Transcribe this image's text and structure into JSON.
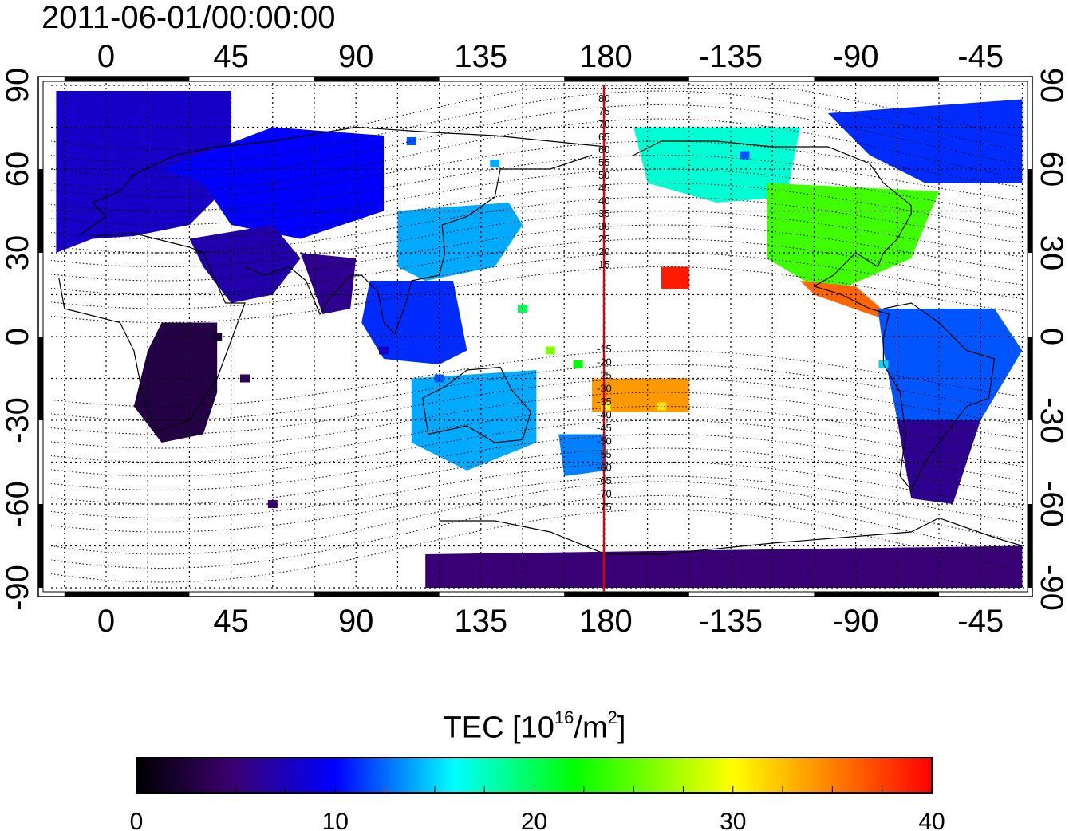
{
  "header": {
    "timestamp": "2011-06-01/00:00:00"
  },
  "map": {
    "lon_ticks": [
      "0",
      "45",
      "90",
      "135",
      "180",
      "-135",
      "-90",
      "-45"
    ],
    "lat_ticks_left": [
      "90",
      "60",
      "30",
      "0",
      "-30",
      "-60",
      "-90"
    ],
    "lat_ticks_right": [
      "90",
      "60",
      "30",
      "0",
      "-30",
      "-60",
      "-90"
    ],
    "lon_range": [
      -20,
      330
    ],
    "lat_range": [
      -90,
      90
    ],
    "grid_style": "dotted",
    "central_meridian_marker": "180",
    "central_meridian_color": "#dd0000",
    "mlat_contour_labels_north": [
      "80",
      "75",
      "70",
      "65",
      "60",
      "55",
      "50",
      "45",
      "40",
      "35",
      "30",
      "25",
      "20",
      "15"
    ],
    "mlat_contour_labels_south": [
      "-15",
      "-20",
      "-25",
      "-30",
      "-35",
      "-40",
      "-45",
      "-50",
      "-55",
      "-60",
      "-65",
      "-70",
      "-75"
    ]
  },
  "colorbar": {
    "title_main": "TEC  [10",
    "title_exp": "16",
    "title_unit": "/m",
    "title_unit_exp": "2",
    "title_close": "]",
    "min": 0,
    "max": 40,
    "ticks": [
      "0",
      "10",
      "20",
      "30",
      "40"
    ],
    "stops": [
      "#000000",
      "#3a006e",
      "#0000ff",
      "#00ffff",
      "#00ff00",
      "#ffff00",
      "#ff0000"
    ]
  },
  "tec_regions": [
    {
      "region": "europe",
      "tec": 8
    },
    {
      "region": "russia-siberia",
      "tec": 10
    },
    {
      "region": "africa",
      "tec": 3
    },
    {
      "region": "middle-east",
      "tec": 7
    },
    {
      "region": "india",
      "tec": 6
    },
    {
      "region": "east-asia-japan",
      "tec": 14
    },
    {
      "region": "southeast-asia",
      "tec": 11
    },
    {
      "region": "australia",
      "tec": 14
    },
    {
      "region": "new-zealand",
      "tec": 13
    },
    {
      "region": "alaska-canada-west",
      "tec": 17
    },
    {
      "region": "united-states",
      "tec": 24
    },
    {
      "region": "canada-east",
      "tec": 11
    },
    {
      "region": "central-america",
      "tec": 36
    },
    {
      "region": "south-america-north",
      "tec": 12
    },
    {
      "region": "south-america-south",
      "tec": 6
    },
    {
      "region": "antarctica",
      "tec": 5
    },
    {
      "region": "hawaii",
      "tec": 39
    },
    {
      "region": "pacific-south",
      "tec": 34
    }
  ]
}
